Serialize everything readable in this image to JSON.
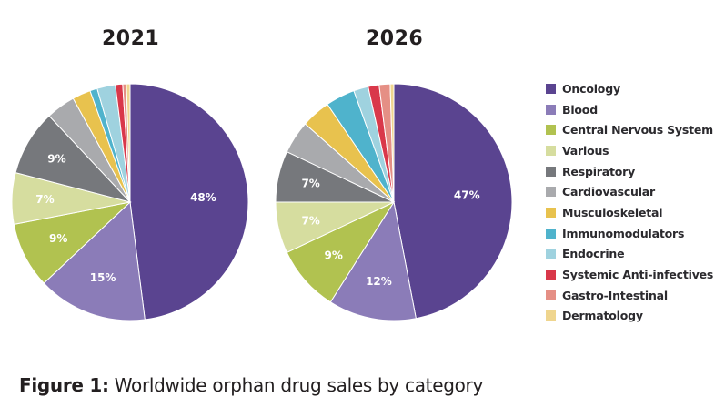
{
  "chart_data": [
    {
      "type": "pie",
      "title": "2021",
      "start": "12 o'clock, clockwise",
      "categories": [
        "Oncology",
        "Blood",
        "Central Nervous System",
        "Various",
        "Respiratory",
        "Cardiovascular",
        "Musculoskeletal",
        "Immunomodulators",
        "Endocrine",
        "Systemic Anti-infectives",
        "Gastro-Intestinal",
        "Dermatology"
      ],
      "values": [
        48,
        15,
        9,
        7,
        9,
        4,
        2.5,
        1,
        2.5,
        1,
        0.5,
        0.5
      ],
      "data_labels": [
        "48%",
        "15%",
        "9%",
        "7%",
        "9%",
        "",
        "",
        "",
        "",
        "",
        "",
        ""
      ]
    },
    {
      "type": "pie",
      "title": "2026",
      "start": "12 o'clock, clockwise",
      "categories": [
        "Oncology",
        "Blood",
        "Central Nervous System",
        "Various",
        "Respiratory",
        "Cardiovascular",
        "Musculoskeletal",
        "Immunomodulators",
        "Endocrine",
        "Systemic Anti-infectives",
        "Gastro-Intestinal",
        "Dermatology"
      ],
      "values": [
        47,
        12,
        9,
        7,
        7,
        4.5,
        4,
        4,
        2,
        1.5,
        1.5,
        0.5
      ],
      "data_labels": [
        "47%",
        "12%",
        "9%",
        "7%",
        "7%",
        "",
        "",
        "",
        "",
        "",
        "",
        ""
      ]
    }
  ],
  "legend": {
    "position": "right",
    "items": [
      {
        "label": "Oncology",
        "color": "#5a4490"
      },
      {
        "label": "Blood",
        "color": "#8b7cb8"
      },
      {
        "label": "Central Nervous System",
        "color": "#b1c250"
      },
      {
        "label": "Various",
        "color": "#d6dd9f"
      },
      {
        "label": "Respiratory",
        "color": "#76787c"
      },
      {
        "label": "Cardiovascular",
        "color": "#a9aaad"
      },
      {
        "label": "Musculoskeletal",
        "color": "#e8c24e"
      },
      {
        "label": "Immunomodulators",
        "color": "#4fb3cc"
      },
      {
        "label": "Endocrine",
        "color": "#9fd2df"
      },
      {
        "label": "Systemic Anti-infectives",
        "color": "#d9384a"
      },
      {
        "label": "Gastro-Intestinal",
        "color": "#e58f85"
      },
      {
        "label": "Dermatology",
        "color": "#efd58e"
      }
    ]
  },
  "caption": {
    "prefix": "Figure 1:",
    "text": " Worldwide orphan drug sales by category"
  }
}
